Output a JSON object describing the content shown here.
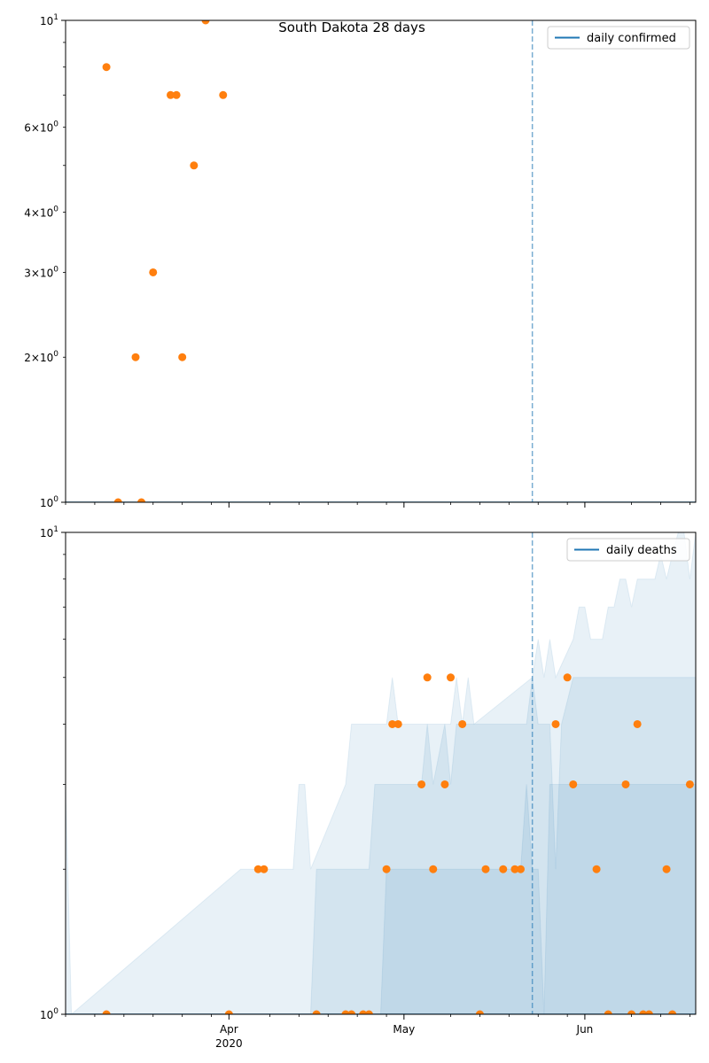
{
  "figure": {
    "suptitle": "South Dakota 28 days"
  },
  "colors": {
    "line": "#1f77b4",
    "points": "#ff7f0e",
    "band": "#1f77b4",
    "axis": "#000000"
  },
  "chart_data": [
    {
      "type": "scatter",
      "yscale": "log",
      "ylim": [
        1,
        10
      ],
      "xlim_days": [
        0,
        108
      ],
      "y_ticks": [
        {
          "value": 1,
          "base": "10",
          "exp": "0",
          "coef": ""
        },
        {
          "value": 10,
          "base": "10",
          "exp": "1",
          "coef": ""
        }
      ],
      "y_minor_ticks": [
        {
          "value": 2,
          "coef": "2",
          "base": "10",
          "exp": "0"
        },
        {
          "value": 3,
          "coef": "3",
          "base": "10",
          "exp": "0"
        },
        {
          "value": 4,
          "coef": "4",
          "base": "10",
          "exp": "0"
        },
        {
          "value": 6,
          "coef": "6",
          "base": "10",
          "exp": "0"
        }
      ],
      "y_minor_unlabeled": [
        5,
        7,
        8,
        9
      ],
      "x_major_ticks": [],
      "x_minor_days": [
        0,
        5,
        10,
        15,
        20,
        25,
        35,
        40,
        45,
        50,
        55,
        66,
        71,
        76,
        81,
        86,
        97,
        102,
        107
      ],
      "vline_day": 80,
      "legend": {
        "label": "daily confirmed",
        "position": "upper right"
      },
      "line_series": {
        "name": "daily confirmed",
        "x": [
          0,
          108
        ],
        "y": [
          1,
          1
        ]
      },
      "bands": [],
      "points": {
        "x": [
          7,
          9,
          12,
          13,
          15,
          18,
          19,
          20,
          22,
          24,
          27
        ],
        "y": [
          8,
          1,
          2,
          1,
          3,
          7,
          7,
          2,
          5,
          10,
          7
        ]
      }
    },
    {
      "type": "scatter",
      "yscale": "log",
      "ylim": [
        1,
        10
      ],
      "xlim_days": [
        0,
        108
      ],
      "y_ticks": [
        {
          "value": 1,
          "base": "10",
          "exp": "0",
          "coef": ""
        },
        {
          "value": 10,
          "base": "10",
          "exp": "1",
          "coef": ""
        }
      ],
      "y_minor_ticks": [],
      "y_minor_unlabeled": [
        2,
        3,
        4,
        5,
        6,
        7,
        8,
        9
      ],
      "x_major_ticks": [
        {
          "day": 28,
          "label": "Apr",
          "sublabel": "2020"
        },
        {
          "day": 58,
          "label": "May",
          "sublabel": ""
        },
        {
          "day": 89,
          "label": "Jun",
          "sublabel": ""
        }
      ],
      "x_minor_days": [
        0,
        5,
        10,
        15,
        20,
        25,
        35,
        40,
        45,
        50,
        55,
        66,
        71,
        76,
        81,
        86,
        97,
        102,
        107
      ],
      "vline_day": 80,
      "legend": {
        "label": "daily deaths",
        "position": "upper right"
      },
      "line_series": {
        "name": "daily deaths",
        "x": [
          0,
          108
        ],
        "y": [
          1,
          1
        ]
      },
      "bands": [
        {
          "x": [
            0,
            1,
            30,
            31,
            39,
            40,
            41,
            42,
            48,
            49,
            55,
            56,
            57,
            58,
            66,
            67,
            68,
            69,
            70,
            80,
            81,
            82,
            83,
            84,
            87,
            88,
            89,
            90,
            92,
            93,
            94,
            95,
            96,
            97,
            98,
            99,
            100,
            101,
            102,
            103,
            104,
            105,
            106,
            107,
            108
          ],
          "y": [
            3,
            1,
            2,
            2,
            2,
            3,
            3,
            2,
            3,
            4,
            4,
            5,
            4,
            4,
            4,
            5,
            4,
            5,
            4,
            5,
            6,
            5,
            6,
            5,
            6,
            7,
            7,
            6,
            6,
            7,
            7,
            8,
            8,
            7,
            8,
            8,
            8,
            8,
            9,
            8,
            9,
            10,
            10,
            8,
            10
          ]
        },
        {
          "x": [
            0,
            42,
            43,
            52,
            53,
            56,
            58,
            61,
            62,
            63,
            65,
            66,
            67,
            79,
            80,
            81,
            83,
            84,
            85,
            87,
            108
          ],
          "y": [
            1,
            1,
            2,
            2,
            3,
            3,
            3,
            3,
            4,
            3,
            4,
            3,
            4,
            4,
            5,
            4,
            4,
            2,
            4,
            5,
            5
          ]
        },
        {
          "x": [
            0,
            54,
            55,
            78,
            79,
            80,
            81,
            82,
            83,
            108
          ],
          "y": [
            1,
            1,
            2,
            2,
            3,
            2,
            2,
            1,
            3,
            3
          ]
        }
      ],
      "points": {
        "x": [
          7,
          28,
          33,
          34,
          43,
          48,
          49,
          51,
          52,
          55,
          56,
          57,
          61,
          62,
          63,
          65,
          66,
          68,
          71,
          72,
          75,
          77,
          78,
          84,
          86,
          87,
          91,
          93,
          96,
          97,
          98,
          99,
          100,
          103,
          104,
          107
        ],
        "y": [
          1,
          1,
          2,
          2,
          1,
          1,
          1,
          1,
          1,
          2,
          4,
          4,
          3,
          5,
          2,
          3,
          5,
          4,
          1,
          2,
          2,
          2,
          2,
          4,
          5,
          3,
          2,
          1,
          3,
          1,
          4,
          1,
          1,
          2,
          1,
          3
        ]
      }
    }
  ]
}
